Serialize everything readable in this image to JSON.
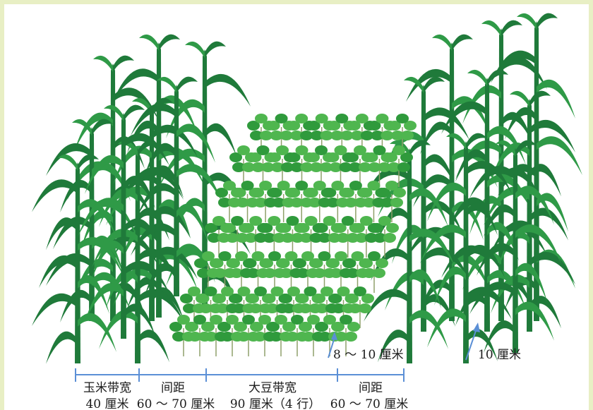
{
  "colors": {
    "corn_dark": "#1f7a3a",
    "corn_mid": "#2f9a47",
    "soy_leaf": "#4fb64f",
    "soy_leaf_dark": "#2f9a3c",
    "stem": "#8fa06a",
    "dimension_line": "#5b8fd6",
    "frame": "#e8efc4"
  },
  "annotations": {
    "soy_spacing": "8 ～ 10 厘米",
    "corn_spacing": "10 厘米"
  },
  "bands": [
    {
      "name": "玉米带宽",
      "width": "40 厘米"
    },
    {
      "name": "间距",
      "width": "60 ～ 70 厘米"
    },
    {
      "name": "大豆带宽",
      "width": "90 厘米（4 行）"
    },
    {
      "name": "间距",
      "width": "60 ～ 70 厘米"
    }
  ]
}
